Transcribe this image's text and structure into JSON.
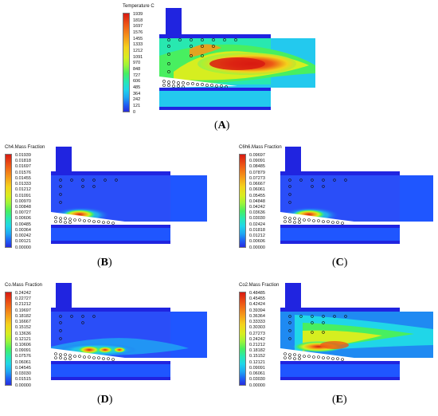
{
  "colors": {
    "scale": [
      "#2a1fd8",
      "#1f5cf2",
      "#1fa8f2",
      "#20d6e8",
      "#28e8b0",
      "#48ef60",
      "#9cf43a",
      "#d6ee20",
      "#f4d21c",
      "#f59a1a",
      "#ee5a16",
      "#d81a12"
    ],
    "background_field": "#1f56ff",
    "inner_channel": "#23c9ee",
    "wall": "#2024e0"
  },
  "panels": [
    {
      "id": "A",
      "legend_title": "Temperature C",
      "ticks": [
        "1939",
        "1818",
        "1697",
        "1576",
        "1455",
        "1333",
        "1212",
        "1091",
        "970",
        "848",
        "727",
        "606",
        "485",
        "364",
        "242",
        "121",
        "0"
      ],
      "caption": "A"
    },
    {
      "id": "B",
      "legend_title": "Ch4.Mass Fraction",
      "ticks": [
        "0.01939",
        "0.01818",
        "0.01697",
        "0.01576",
        "0.01455",
        "0.01333",
        "0.01212",
        "0.01091",
        "0.00970",
        "0.00848",
        "0.00727",
        "0.00606",
        "0.00485",
        "0.00364",
        "0.00242",
        "0.00121",
        "0.00000"
      ],
      "caption": "B"
    },
    {
      "id": "C",
      "legend_title": "C6h6.Mass Fraction",
      "ticks": [
        "0.09697",
        "0.09091",
        "0.08485",
        "0.07879",
        "0.07273",
        "0.06667",
        "0.06061",
        "0.05455",
        "0.04848",
        "0.04242",
        "0.03636",
        "0.03030",
        "0.02424",
        "0.01818",
        "0.01212",
        "0.00606",
        "0.00000"
      ],
      "caption": "C"
    },
    {
      "id": "D",
      "legend_title": "Co.Mass Fraction",
      "ticks": [
        "0.24242",
        "0.22727",
        "0.21212",
        "0.19697",
        "0.18182",
        "0.16667",
        "0.15152",
        "0.13636",
        "0.12121",
        "0.10606",
        "0.09091",
        "0.07576",
        "0.06061",
        "0.04545",
        "0.03030",
        "0.01515",
        "0.00000"
      ],
      "caption": "D"
    },
    {
      "id": "E",
      "legend_title": "Co2.Mass Fraction",
      "ticks": [
        "0.48485",
        "0.45455",
        "0.42424",
        "0.39394",
        "0.36364",
        "0.33333",
        "0.30303",
        "0.27273",
        "0.24242",
        "0.21212",
        "0.18182",
        "0.15152",
        "0.12121",
        "0.09091",
        "0.06061",
        "0.03030",
        "0.00000"
      ],
      "caption": "E"
    }
  ]
}
